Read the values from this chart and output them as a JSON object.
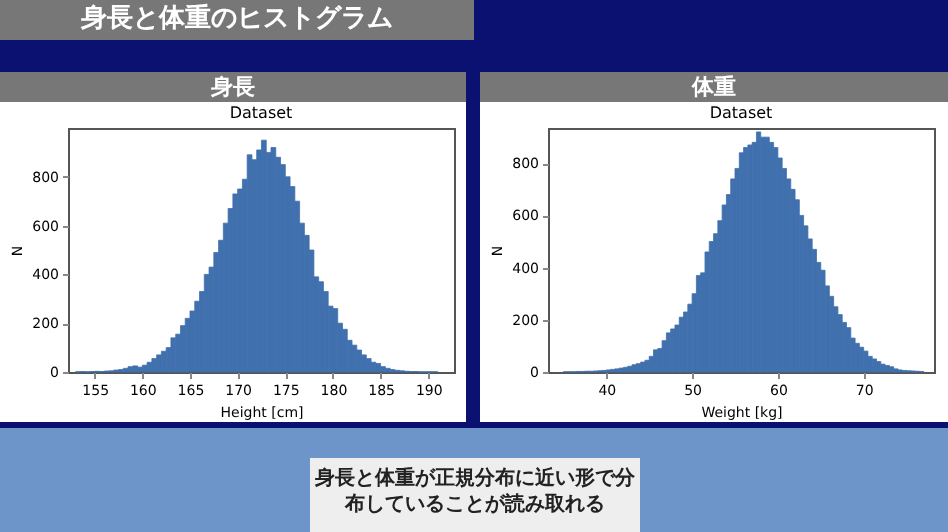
{
  "chart_data": [
    {
      "type": "histogram",
      "title": "身長",
      "subtitle": "Dataset",
      "xlabel": "Height [cm]",
      "ylabel": "N",
      "color": "#4070ad",
      "annotations": [
        "身長と体重のヒストグラム",
        "身長と体重が正規分布に近い形で分布していることが読み取れる"
      ],
      "bins": [
        153,
        153.5,
        154,
        154.5,
        155,
        155.5,
        156,
        156.5,
        157,
        157.5,
        158,
        158.5,
        159,
        159.5,
        160,
        160.5,
        161,
        161.5,
        162,
        162.5,
        163,
        163.5,
        164,
        164.5,
        165,
        165.5,
        166,
        166.5,
        167,
        167.5,
        168,
        168.5,
        169,
        169.5,
        170,
        170.5,
        171,
        171.5,
        172,
        172.5,
        173,
        173.5,
        174,
        174.5,
        175,
        175.5,
        176,
        176.5,
        177,
        177.5,
        178,
        178.5,
        179,
        179.5,
        180,
        180.5,
        181,
        181.5,
        182,
        182.5,
        183,
        183.5,
        184,
        184.5,
        185,
        185.5,
        186,
        186.5,
        187,
        187.5,
        188,
        188.5,
        189,
        189.5,
        190,
        190.5,
        191
      ],
      "values": [
        1,
        2,
        1,
        2,
        3,
        2,
        4,
        5,
        8,
        10,
        15,
        22,
        25,
        20,
        28,
        40,
        55,
        70,
        85,
        100,
        140,
        155,
        190,
        220,
        250,
        290,
        330,
        400,
        430,
        490,
        540,
        610,
        670,
        730,
        750,
        790,
        890,
        870,
        910,
        950,
        900,
        920,
        880,
        850,
        800,
        760,
        700,
        610,
        560,
        500,
        390,
        370,
        330,
        270,
        260,
        200,
        175,
        130,
        110,
        90,
        70,
        55,
        40,
        35,
        22,
        15,
        10,
        7,
        5,
        3,
        2,
        2,
        1,
        1,
        1,
        1
      ],
      "xlim": [
        152.2,
        192.7
      ],
      "xticks": [
        155,
        160,
        165,
        170,
        175,
        180,
        185,
        190
      ],
      "ylim": [
        0,
        1000
      ],
      "yticks": [
        0,
        200,
        400,
        600,
        800
      ]
    },
    {
      "type": "histogram",
      "title": "体重",
      "subtitle": "Dataset",
      "xlabel": "Weight [kg]",
      "ylabel": "N",
      "color": "#4070ad",
      "bins": [
        35,
        35.5,
        36,
        36.5,
        37,
        37.5,
        38,
        38.5,
        39,
        39.5,
        40,
        40.5,
        41,
        41.5,
        42,
        42.5,
        43,
        43.5,
        44,
        44.5,
        45,
        45.5,
        46,
        46.5,
        47,
        47.5,
        48,
        48.5,
        49,
        49.5,
        50,
        50.5,
        51,
        51.5,
        52,
        52.5,
        53,
        53.5,
        54,
        54.5,
        55,
        55.5,
        56,
        56.5,
        57,
        57.5,
        58,
        58.5,
        59,
        59.5,
        60,
        60.5,
        61,
        61.5,
        62,
        62.5,
        63,
        63.5,
        64,
        64.5,
        65,
        65.5,
        66,
        66.5,
        67,
        67.5,
        68,
        68.5,
        69,
        69.5,
        70,
        70.5,
        71,
        71.5,
        72,
        72.5,
        73,
        73.5,
        74,
        74.5,
        75,
        75.5,
        76,
        76.5,
        77
      ],
      "values": [
        1,
        1,
        1,
        2,
        2,
        3,
        3,
        4,
        5,
        6,
        8,
        10,
        12,
        15,
        18,
        22,
        28,
        32,
        38,
        45,
        60,
        85,
        90,
        120,
        150,
        165,
        180,
        210,
        230,
        260,
        300,
        370,
        380,
        460,
        500,
        530,
        580,
        640,
        680,
        740,
        780,
        840,
        860,
        870,
        880,
        920,
        900,
        900,
        880,
        860,
        820,
        780,
        740,
        700,
        660,
        600,
        560,
        510,
        470,
        420,
        390,
        330,
        290,
        250,
        220,
        190,
        170,
        130,
        110,
        95,
        80,
        60,
        50,
        40,
        30,
        25,
        20,
        12,
        8,
        6,
        5,
        4,
        3,
        2
      ],
      "xlim": [
        33.2,
        78.2
      ],
      "xticks": [
        40,
        50,
        60,
        70
      ],
      "ylim": [
        0,
        935
      ],
      "yticks": [
        0,
        200,
        400,
        600,
        800
      ]
    }
  ]
}
